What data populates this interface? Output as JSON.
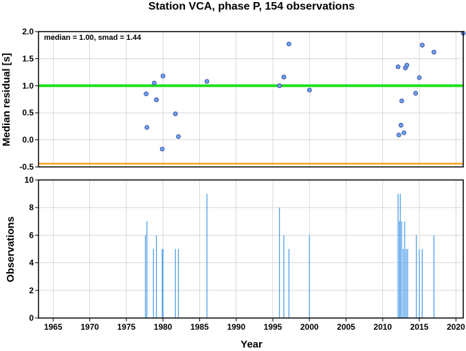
{
  "chart_data": [
    {
      "type": "scatter",
      "title": "Station VCA, phase P, 154 observations",
      "ylabel": "Median residual [s]",
      "xlim": [
        1963,
        2021
      ],
      "ylim": [
        -0.5,
        2.0
      ],
      "yticks": [
        "-0.5",
        "0.0",
        "0.5",
        "1.0",
        "1.5",
        "2.0"
      ],
      "grid": true,
      "annotation": "median = 1.00, smad = 1.44",
      "median_line": 1.0,
      "lower_line": -0.44,
      "colors": {
        "points": "#6f9ff0",
        "median_line": "#22e01c",
        "lower_line": "#f5a623"
      },
      "x": [
        1977.7,
        1977.8,
        1978.8,
        1979.1,
        1979.9,
        1980.0,
        1981.7,
        1982.1,
        1986.0,
        1995.9,
        1996.5,
        1997.2,
        2000.0,
        2012.1,
        2012.2,
        2012.5,
        2012.6,
        2012.9,
        2013.1,
        2013.3,
        2014.5,
        2015.0,
        2015.4,
        2017.0,
        2021.0
      ],
      "y": [
        0.85,
        0.23,
        1.05,
        0.74,
        -0.17,
        1.18,
        0.48,
        0.06,
        1.08,
        1.0,
        1.16,
        1.77,
        0.92,
        1.35,
        0.09,
        0.27,
        0.72,
        0.13,
        1.33,
        1.38,
        0.86,
        1.15,
        1.75,
        1.62,
        1.97
      ]
    },
    {
      "type": "bar",
      "xlabel": "Year",
      "ylabel": "Observations",
      "xlim": [
        1963,
        2021
      ],
      "ylim": [
        0,
        10
      ],
      "yticks": [
        "0",
        "2",
        "4",
        "6",
        "8",
        "10"
      ],
      "xticks": [
        "1965",
        "1970",
        "1975",
        "1980",
        "1985",
        "1990",
        "1995",
        "2000",
        "2005",
        "2010",
        "2015",
        "2020"
      ],
      "grid": true,
      "colors": {
        "bars": "#4f9fe8"
      },
      "x": [
        1977.6,
        1977.8,
        1978.7,
        1979.1,
        1979.9,
        1980.0,
        1981.7,
        1982.1,
        1986.0,
        1995.9,
        1996.5,
        1997.2,
        2000.0,
        2012.1,
        2012.3,
        2012.4,
        2012.6,
        2012.8,
        2013.0,
        2013.2,
        2013.4,
        2014.6,
        2015.0,
        2015.4,
        2017.0
      ],
      "values": [
        6,
        7,
        5,
        6,
        5,
        5,
        5,
        5,
        9,
        8,
        6,
        5,
        6,
        9,
        7,
        9,
        7,
        5,
        7,
        5,
        5,
        6,
        5,
        5,
        6
      ]
    }
  ]
}
